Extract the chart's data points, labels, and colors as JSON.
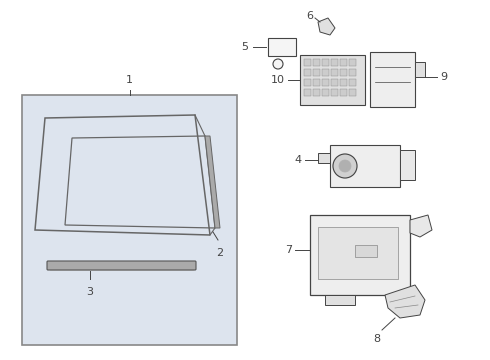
{
  "background_color": "#ffffff",
  "box_bg": "#dde4ee",
  "line_color": "#444444",
  "label_color": "#000000",
  "fig_w": 4.9,
  "fig_h": 3.6,
  "dpi": 100
}
